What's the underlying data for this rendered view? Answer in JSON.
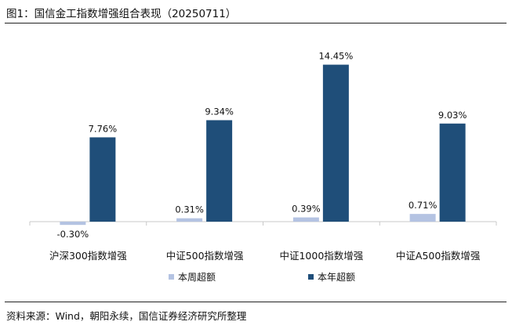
{
  "figure": {
    "title": "图1：国信金工指数增强组合表现（20250711）",
    "source": "资料来源：Wind，朝阳永续，国信证券经济研究所整理"
  },
  "chart_data": {
    "type": "bar",
    "categories": [
      "沪深300指数增强",
      "中证500指数增强",
      "中证1000指数增强",
      "中证A500指数增强"
    ],
    "series": [
      {
        "name": "本周超额",
        "values": [
          -0.3,
          0.31,
          0.39,
          0.71
        ],
        "labels": [
          "-0.30%",
          "0.31%",
          "0.39%",
          "0.71%"
        ],
        "color": "#b4c3e2"
      },
      {
        "name": "本年超额",
        "values": [
          7.76,
          9.34,
          14.45,
          9.03
        ],
        "labels": [
          "7.76%",
          "9.34%",
          "14.45%",
          "9.03%"
        ],
        "color": "#1f4e79"
      }
    ],
    "ylim": [
      -0.5,
      15.5
    ],
    "legend": "bottom",
    "grid": false
  }
}
